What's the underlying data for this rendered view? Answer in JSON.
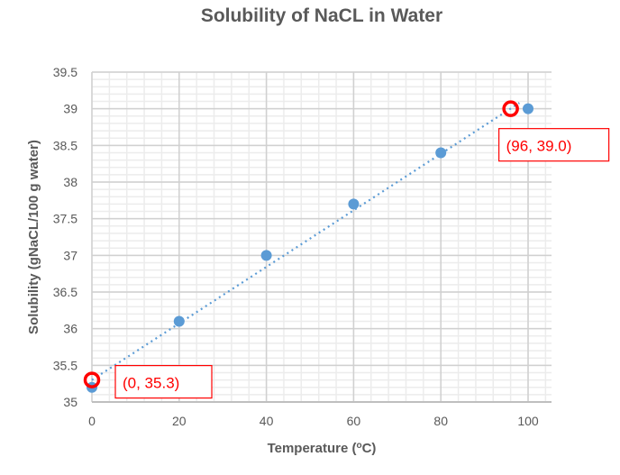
{
  "chart_data": {
    "type": "scatter",
    "title": "Solubility  of NaCL in Water",
    "xlabel": "Temperature (",
    "xlabel_sup": "o",
    "xlabel_end": "C)",
    "ylabel": "Solubility (gNaCL/100 g water)",
    "xlim": [
      0,
      105
    ],
    "ylim": [
      35,
      39.5
    ],
    "xticks": [
      0,
      20,
      40,
      60,
      80,
      100
    ],
    "yticks": [
      35,
      35.5,
      36,
      36.5,
      37,
      37.5,
      38,
      38.5,
      39,
      39.5
    ],
    "ytick_labels": [
      "35",
      "35.5",
      "36",
      "36.5",
      "37",
      "37.5",
      "38",
      "38.5",
      "39",
      "39.5"
    ],
    "grid": true,
    "series": [
      {
        "name": "Solubility",
        "color": "#5b9bd5",
        "x": [
          0,
          20,
          40,
          60,
          80,
          100
        ],
        "y": [
          35.2,
          36.1,
          37.0,
          37.7,
          38.4,
          39.0
        ]
      }
    ],
    "trendline": {
      "type": "linear",
      "style": "dotted",
      "color": "#5b9bd5",
      "x": [
        0,
        98
      ],
      "y": [
        35.3,
        39.08
      ]
    },
    "annotations": [
      {
        "text": "(0, 35.3)",
        "x": 0,
        "y": 35.3,
        "color": "#ff0000"
      },
      {
        "text": "(96, 39.0)",
        "x": 96,
        "y": 39.0,
        "color": "#ff0000"
      }
    ]
  }
}
